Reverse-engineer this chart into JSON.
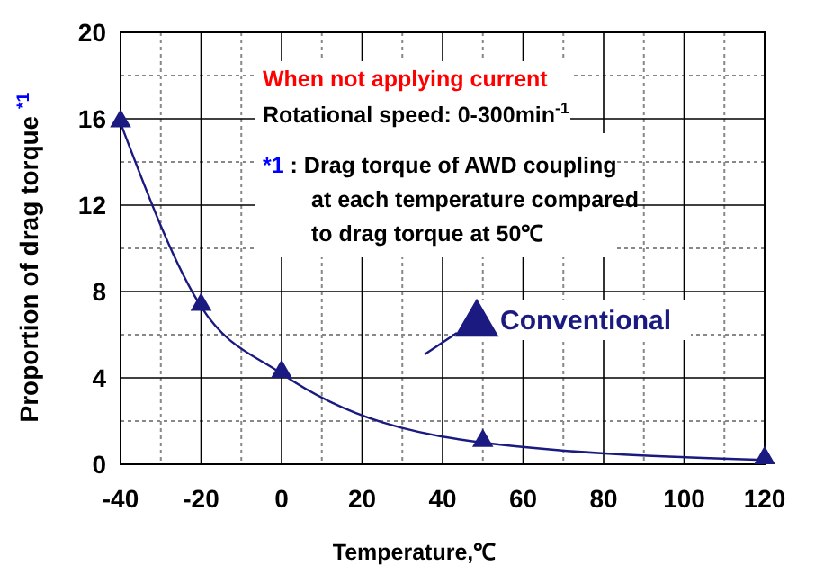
{
  "chart_data": {
    "type": "line",
    "xlabel": "Temperature,℃",
    "ylabel": "Proportion of drag torque $^{*1}$",
    "x": [
      -40,
      -20,
      0,
      50,
      120
    ],
    "series": [
      {
        "name": "Conventional",
        "color": "#1a1a80",
        "values": [
          15.8,
          7.3,
          4.2,
          1.0,
          0.2
        ]
      }
    ],
    "xlim": [
      -40,
      120
    ],
    "xticks": [
      -40,
      -20,
      0,
      20,
      40,
      60,
      80,
      100,
      120
    ],
    "ylim": [
      0,
      20
    ],
    "yticks": [
      0,
      4,
      8,
      12,
      16,
      20
    ],
    "grid": true,
    "marker": "triangle",
    "legend": "right",
    "line_style": "solid",
    "annotations": [
      "When not applying current",
      "Rotational speed: 0-300min$^{-1}$",
      "*1 : Drag torque of AWD coupling at each temperature compared to drag torque  at 50℃"
    ]
  }
}
